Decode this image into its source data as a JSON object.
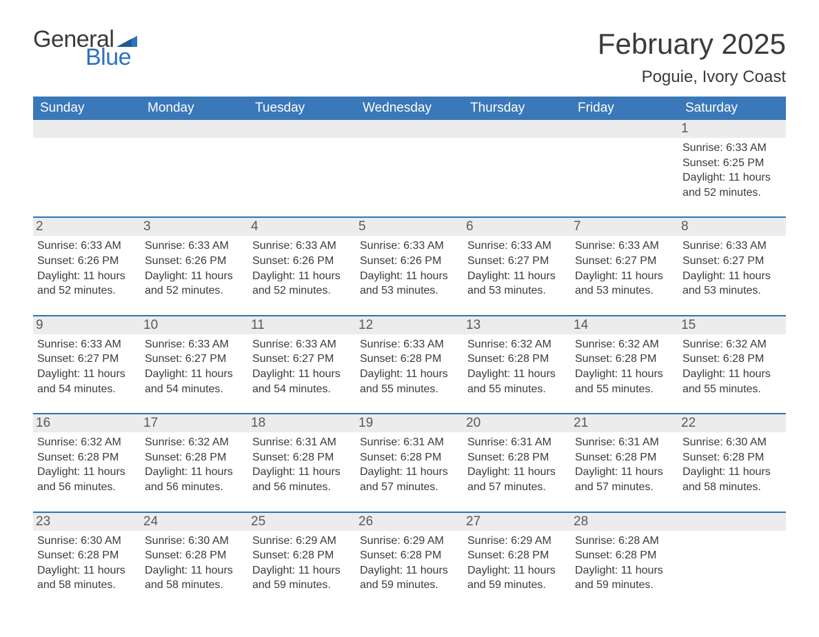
{
  "logo": {
    "general": "General",
    "blue": "Blue"
  },
  "title": "February 2025",
  "location": "Poguie, Ivory Coast",
  "colors": {
    "header_bg": "#3a78b9",
    "header_text": "#ffffff",
    "week_border": "#2d72b8",
    "daynum_bg": "#ececec",
    "text": "#3a3a3a",
    "logo_blue": "#2d72b8"
  },
  "daysOfWeek": [
    "Sunday",
    "Monday",
    "Tuesday",
    "Wednesday",
    "Thursday",
    "Friday",
    "Saturday"
  ],
  "labels": {
    "sunrise": "Sunrise:",
    "sunset": "Sunset:",
    "daylight": "Daylight:"
  },
  "weeks": [
    [
      {
        "num": "",
        "sunrise": "",
        "sunset": "",
        "daylight": ""
      },
      {
        "num": "",
        "sunrise": "",
        "sunset": "",
        "daylight": ""
      },
      {
        "num": "",
        "sunrise": "",
        "sunset": "",
        "daylight": ""
      },
      {
        "num": "",
        "sunrise": "",
        "sunset": "",
        "daylight": ""
      },
      {
        "num": "",
        "sunrise": "",
        "sunset": "",
        "daylight": ""
      },
      {
        "num": "",
        "sunrise": "",
        "sunset": "",
        "daylight": ""
      },
      {
        "num": "1",
        "sunrise": "6:33 AM",
        "sunset": "6:25 PM",
        "daylight": "11 hours and 52 minutes."
      }
    ],
    [
      {
        "num": "2",
        "sunrise": "6:33 AM",
        "sunset": "6:26 PM",
        "daylight": "11 hours and 52 minutes."
      },
      {
        "num": "3",
        "sunrise": "6:33 AM",
        "sunset": "6:26 PM",
        "daylight": "11 hours and 52 minutes."
      },
      {
        "num": "4",
        "sunrise": "6:33 AM",
        "sunset": "6:26 PM",
        "daylight": "11 hours and 52 minutes."
      },
      {
        "num": "5",
        "sunrise": "6:33 AM",
        "sunset": "6:26 PM",
        "daylight": "11 hours and 53 minutes."
      },
      {
        "num": "6",
        "sunrise": "6:33 AM",
        "sunset": "6:27 PM",
        "daylight": "11 hours and 53 minutes."
      },
      {
        "num": "7",
        "sunrise": "6:33 AM",
        "sunset": "6:27 PM",
        "daylight": "11 hours and 53 minutes."
      },
      {
        "num": "8",
        "sunrise": "6:33 AM",
        "sunset": "6:27 PM",
        "daylight": "11 hours and 53 minutes."
      }
    ],
    [
      {
        "num": "9",
        "sunrise": "6:33 AM",
        "sunset": "6:27 PM",
        "daylight": "11 hours and 54 minutes."
      },
      {
        "num": "10",
        "sunrise": "6:33 AM",
        "sunset": "6:27 PM",
        "daylight": "11 hours and 54 minutes."
      },
      {
        "num": "11",
        "sunrise": "6:33 AM",
        "sunset": "6:27 PM",
        "daylight": "11 hours and 54 minutes."
      },
      {
        "num": "12",
        "sunrise": "6:33 AM",
        "sunset": "6:28 PM",
        "daylight": "11 hours and 55 minutes."
      },
      {
        "num": "13",
        "sunrise": "6:32 AM",
        "sunset": "6:28 PM",
        "daylight": "11 hours and 55 minutes."
      },
      {
        "num": "14",
        "sunrise": "6:32 AM",
        "sunset": "6:28 PM",
        "daylight": "11 hours and 55 minutes."
      },
      {
        "num": "15",
        "sunrise": "6:32 AM",
        "sunset": "6:28 PM",
        "daylight": "11 hours and 55 minutes."
      }
    ],
    [
      {
        "num": "16",
        "sunrise": "6:32 AM",
        "sunset": "6:28 PM",
        "daylight": "11 hours and 56 minutes."
      },
      {
        "num": "17",
        "sunrise": "6:32 AM",
        "sunset": "6:28 PM",
        "daylight": "11 hours and 56 minutes."
      },
      {
        "num": "18",
        "sunrise": "6:31 AM",
        "sunset": "6:28 PM",
        "daylight": "11 hours and 56 minutes."
      },
      {
        "num": "19",
        "sunrise": "6:31 AM",
        "sunset": "6:28 PM",
        "daylight": "11 hours and 57 minutes."
      },
      {
        "num": "20",
        "sunrise": "6:31 AM",
        "sunset": "6:28 PM",
        "daylight": "11 hours and 57 minutes."
      },
      {
        "num": "21",
        "sunrise": "6:31 AM",
        "sunset": "6:28 PM",
        "daylight": "11 hours and 57 minutes."
      },
      {
        "num": "22",
        "sunrise": "6:30 AM",
        "sunset": "6:28 PM",
        "daylight": "11 hours and 58 minutes."
      }
    ],
    [
      {
        "num": "23",
        "sunrise": "6:30 AM",
        "sunset": "6:28 PM",
        "daylight": "11 hours and 58 minutes."
      },
      {
        "num": "24",
        "sunrise": "6:30 AM",
        "sunset": "6:28 PM",
        "daylight": "11 hours and 58 minutes."
      },
      {
        "num": "25",
        "sunrise": "6:29 AM",
        "sunset": "6:28 PM",
        "daylight": "11 hours and 59 minutes."
      },
      {
        "num": "26",
        "sunrise": "6:29 AM",
        "sunset": "6:28 PM",
        "daylight": "11 hours and 59 minutes."
      },
      {
        "num": "27",
        "sunrise": "6:29 AM",
        "sunset": "6:28 PM",
        "daylight": "11 hours and 59 minutes."
      },
      {
        "num": "28",
        "sunrise": "6:28 AM",
        "sunset": "6:28 PM",
        "daylight": "11 hours and 59 minutes."
      },
      {
        "num": "",
        "sunrise": "",
        "sunset": "",
        "daylight": ""
      }
    ]
  ]
}
